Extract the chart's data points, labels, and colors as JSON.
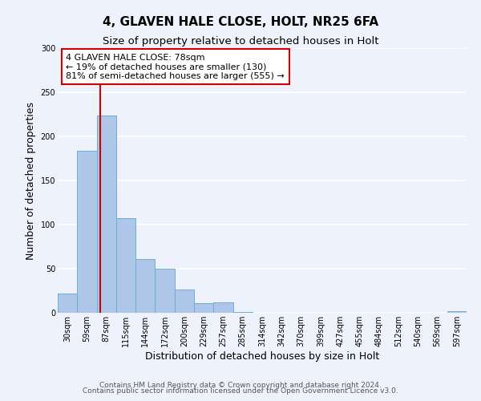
{
  "title": "4, GLAVEN HALE CLOSE, HOLT, NR25 6FA",
  "subtitle": "Size of property relative to detached houses in Holt",
  "xlabel": "Distribution of detached houses by size in Holt",
  "ylabel": "Number of detached properties",
  "bin_labels": [
    "30sqm",
    "59sqm",
    "87sqm",
    "115sqm",
    "144sqm",
    "172sqm",
    "200sqm",
    "229sqm",
    "257sqm",
    "285sqm",
    "314sqm",
    "342sqm",
    "370sqm",
    "399sqm",
    "427sqm",
    "455sqm",
    "484sqm",
    "512sqm",
    "540sqm",
    "569sqm",
    "597sqm"
  ],
  "bar_values": [
    22,
    184,
    224,
    107,
    61,
    50,
    26,
    11,
    12,
    1,
    0,
    0,
    0,
    0,
    0,
    0,
    0,
    0,
    0,
    0,
    2
  ],
  "bar_color": "#aec6e8",
  "bar_edge_color": "#6baed6",
  "vline_x_idx": 1.68,
  "vline_color": "#cc0000",
  "annotation_text": "4 GLAVEN HALE CLOSE: 78sqm\n← 19% of detached houses are smaller (130)\n81% of semi-detached houses are larger (555) →",
  "annotation_box_color": "#ffffff",
  "annotation_box_edge": "#cc0000",
  "ylim": [
    0,
    300
  ],
  "yticks": [
    0,
    50,
    100,
    150,
    200,
    250,
    300
  ],
  "footer_line1": "Contains HM Land Registry data © Crown copyright and database right 2024.",
  "footer_line2": "Contains public sector information licensed under the Open Government Licence v3.0.",
  "bg_color": "#eef2fc",
  "grid_color": "#ffffff",
  "title_fontsize": 11,
  "subtitle_fontsize": 9.5,
  "axis_label_fontsize": 9,
  "tick_fontsize": 7,
  "annotation_fontsize": 8,
  "footer_fontsize": 6.5
}
